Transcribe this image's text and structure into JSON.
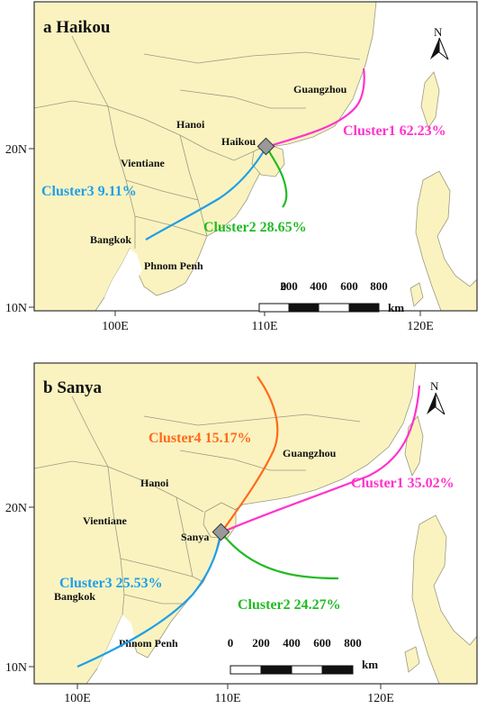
{
  "colors": {
    "ocean": "#ffffff",
    "land": "#faf3c0",
    "border": "#9a9a80",
    "frame": "#333333",
    "cluster1": "#ff33cc",
    "cluster2": "#22bb22",
    "cluster3": "#1e9fe8",
    "cluster4": "#ff6a1a",
    "station_marker": "#999999"
  },
  "north_arrow_label": "N",
  "scale_labels": [
    "0",
    "200",
    "400",
    "600",
    "800"
  ],
  "scale_unit": "km",
  "panel_a": {
    "title": "a  Haikou",
    "x_ticks": [
      "100E",
      "110E",
      "120E"
    ],
    "y_ticks": [
      "20N",
      "10N"
    ],
    "places": {
      "guangzhou": "Guangzhou",
      "hanoi": "Hanoi",
      "haikou": "Haikou",
      "vientiane": "Vientiane",
      "bangkok": "Bangkok",
      "phnom_penh": "Phnom Penh"
    },
    "clusters": [
      {
        "label": "Cluster1 62.23%"
      },
      {
        "label": "Cluster2 28.65%"
      },
      {
        "label": "Cluster3 9.11%"
      }
    ]
  },
  "panel_b": {
    "title": "b  Sanya",
    "x_ticks": [
      "100E",
      "110E",
      "120E"
    ],
    "y_ticks": [
      "20N",
      "10N"
    ],
    "places": {
      "guangzhou": "Guangzhou",
      "hanoi": "Hanoi",
      "sanya": "Sanya",
      "vientiane": "Vientiane",
      "bangkok": "Bangkok",
      "phnom_penh": "Phnom Penh"
    },
    "clusters": [
      {
        "label": "Cluster1 35.02%"
      },
      {
        "label": "Cluster2 24.27%"
      },
      {
        "label": "Cluster3 25.53%"
      },
      {
        "label": "Cluster4 15.17%"
      }
    ]
  }
}
